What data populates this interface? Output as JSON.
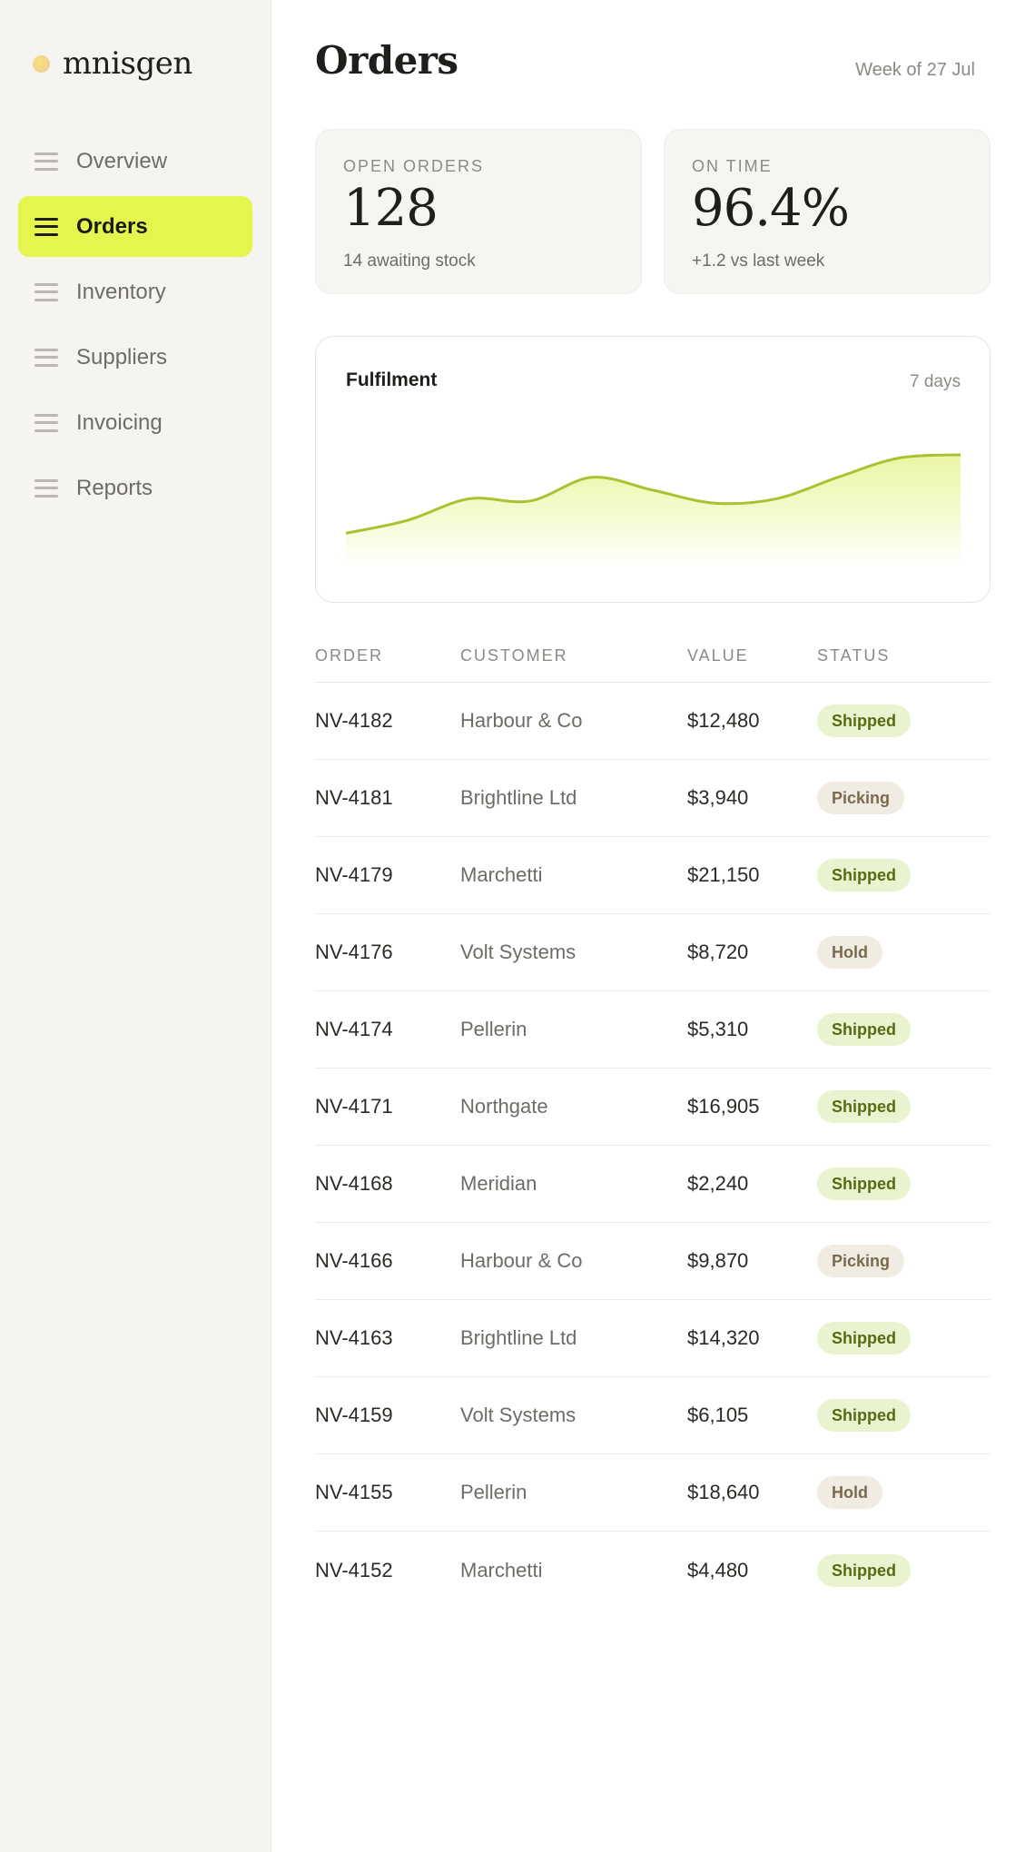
{
  "brand": {
    "name": "mnisgen"
  },
  "sidebar": {
    "items": [
      {
        "label": "Overview",
        "active": false
      },
      {
        "label": "Orders",
        "active": true
      },
      {
        "label": "Inventory",
        "active": false
      },
      {
        "label": "Suppliers",
        "active": false
      },
      {
        "label": "Invoicing",
        "active": false
      },
      {
        "label": "Reports",
        "active": false
      }
    ]
  },
  "header": {
    "title": "Orders",
    "week": "Week of 27 Jul"
  },
  "kpis": {
    "open_orders": {
      "label": "OPEN ORDERS",
      "value": "128",
      "sub": "14 awaiting stock"
    },
    "on_time": {
      "label": "ON TIME",
      "value": "96.4%",
      "sub": "+1.2 vs last week"
    }
  },
  "chart": {
    "title": "Fulfilment",
    "range": "7 days"
  },
  "chart_data": {
    "type": "area",
    "series": [
      {
        "values": [
          20,
          32,
          52,
          50,
          72,
          60,
          48,
          52,
          72,
          90,
          93
        ]
      }
    ],
    "ylim": [
      0,
      120
    ],
    "grid": false,
    "colors": {
      "line": "#a9c22f",
      "fill_top": "#e9f59a",
      "fill_bottom": "#ffffff"
    }
  },
  "table": {
    "headers": {
      "order": "ORDER",
      "customer": "CUSTOMER",
      "value": "VALUE",
      "status": "STATUS"
    },
    "rows": [
      {
        "order": "NV-4182",
        "customer": "Harbour & Co",
        "value": "$12,480",
        "status": "Shipped"
      },
      {
        "order": "NV-4181",
        "customer": "Brightline Ltd",
        "value": "$3,940",
        "status": "Picking"
      },
      {
        "order": "NV-4179",
        "customer": "Marchetti",
        "value": "$21,150",
        "status": "Shipped"
      },
      {
        "order": "NV-4176",
        "customer": "Volt Systems",
        "value": "$8,720",
        "status": "Hold"
      },
      {
        "order": "NV-4174",
        "customer": "Pellerin",
        "value": "$5,310",
        "status": "Shipped"
      },
      {
        "order": "NV-4171",
        "customer": "Northgate",
        "value": "$16,905",
        "status": "Shipped"
      },
      {
        "order": "NV-4168",
        "customer": "Meridian",
        "value": "$2,240",
        "status": "Shipped"
      },
      {
        "order": "NV-4166",
        "customer": "Harbour & Co",
        "value": "$9,870",
        "status": "Picking"
      },
      {
        "order": "NV-4163",
        "customer": "Brightline Ltd",
        "value": "$14,320",
        "status": "Shipped"
      },
      {
        "order": "NV-4159",
        "customer": "Volt Systems",
        "value": "$6,105",
        "status": "Shipped"
      },
      {
        "order": "NV-4155",
        "customer": "Pellerin",
        "value": "$18,640",
        "status": "Hold"
      },
      {
        "order": "NV-4152",
        "customer": "Marchetti",
        "value": "$4,480",
        "status": "Shipped"
      }
    ]
  },
  "icons": {
    "nav": "menu-lines-icon",
    "brand": "brand-dot-icon"
  },
  "colors": {
    "accent": "#e4f54e",
    "shipped_bg": "#eaf3cf",
    "neutral_bg": "#f1ece2"
  }
}
